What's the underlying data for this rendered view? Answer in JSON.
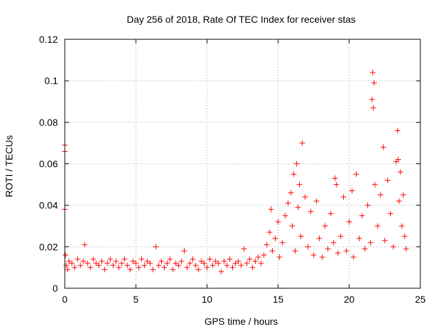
{
  "chart_data": {
    "type": "scatter",
    "title": "Day 256 of 2018, Rate Of TEC Index for receiver stas",
    "xlabel": "GPS time / hours",
    "ylabel": "ROTI / TECUs",
    "xlim": [
      0,
      25
    ],
    "ylim": [
      0,
      0.12
    ],
    "x_ticks": [
      0,
      5,
      10,
      15,
      20,
      25
    ],
    "x_tick_labels": [
      "0",
      "5",
      "10",
      "15",
      "20",
      "25"
    ],
    "y_ticks": [
      0,
      0.02,
      0.04,
      0.06,
      0.08,
      0.1,
      0.12
    ],
    "y_tick_labels": [
      "0",
      "0.02",
      "0.04",
      "0.06",
      "0.08",
      "0.1",
      "0.12"
    ],
    "grid": true,
    "marker": "plus",
    "marker_color": "#ff0000",
    "series": [
      {
        "name": "ROTI",
        "x": [
          0.0,
          0.0,
          0.0,
          0.05,
          0.1,
          0.2,
          0.3,
          0.5,
          0.7,
          0.9,
          1.1,
          1.3,
          1.4,
          1.6,
          1.8,
          2.0,
          2.2,
          2.4,
          2.6,
          2.8,
          3.0,
          3.2,
          3.4,
          3.6,
          3.8,
          4.0,
          4.2,
          4.4,
          4.6,
          4.8,
          5.0,
          5.2,
          5.4,
          5.6,
          5.8,
          6.0,
          6.2,
          6.4,
          6.6,
          6.8,
          7.0,
          7.2,
          7.4,
          7.6,
          7.8,
          8.0,
          8.2,
          8.4,
          8.6,
          8.8,
          9.0,
          9.2,
          9.4,
          9.6,
          9.8,
          10.0,
          10.2,
          10.4,
          10.6,
          10.8,
          11.0,
          11.2,
          11.4,
          11.6,
          11.8,
          12.0,
          12.2,
          12.4,
          12.6,
          12.8,
          13.0,
          13.2,
          13.4,
          13.6,
          13.8,
          14.0,
          14.2,
          14.4,
          14.5,
          14.6,
          14.8,
          15.0,
          15.1,
          15.3,
          15.5,
          15.7,
          15.9,
          16.0,
          16.1,
          16.2,
          16.3,
          16.4,
          16.5,
          16.6,
          16.7,
          16.9,
          17.1,
          17.3,
          17.5,
          17.7,
          17.9,
          18.1,
          18.3,
          18.5,
          18.7,
          18.9,
          19.0,
          19.1,
          19.2,
          19.4,
          19.6,
          19.8,
          20.0,
          20.2,
          20.3,
          20.5,
          20.7,
          20.9,
          21.1,
          21.3,
          21.5,
          21.6,
          21.65,
          21.7,
          21.75,
          21.8,
          22.0,
          22.2,
          22.4,
          22.5,
          22.7,
          22.9,
          23.1,
          23.3,
          23.4,
          23.45,
          23.5,
          23.6,
          23.7,
          23.8,
          23.9,
          24.0
        ],
        "y": [
          0.069,
          0.066,
          0.038,
          0.016,
          0.011,
          0.009,
          0.013,
          0.012,
          0.01,
          0.014,
          0.011,
          0.013,
          0.021,
          0.012,
          0.01,
          0.014,
          0.012,
          0.011,
          0.013,
          0.009,
          0.012,
          0.014,
          0.011,
          0.013,
          0.01,
          0.012,
          0.014,
          0.011,
          0.009,
          0.013,
          0.012,
          0.01,
          0.014,
          0.011,
          0.013,
          0.012,
          0.009,
          0.02,
          0.011,
          0.013,
          0.01,
          0.012,
          0.014,
          0.009,
          0.012,
          0.011,
          0.013,
          0.018,
          0.01,
          0.012,
          0.014,
          0.011,
          0.009,
          0.013,
          0.012,
          0.01,
          0.014,
          0.011,
          0.013,
          0.012,
          0.008,
          0.013,
          0.011,
          0.014,
          0.01,
          0.012,
          0.013,
          0.011,
          0.019,
          0.012,
          0.014,
          0.01,
          0.013,
          0.015,
          0.012,
          0.016,
          0.021,
          0.027,
          0.038,
          0.018,
          0.024,
          0.032,
          0.015,
          0.022,
          0.035,
          0.041,
          0.046,
          0.03,
          0.055,
          0.018,
          0.06,
          0.039,
          0.05,
          0.025,
          0.07,
          0.044,
          0.02,
          0.037,
          0.016,
          0.042,
          0.024,
          0.015,
          0.03,
          0.019,
          0.036,
          0.022,
          0.053,
          0.05,
          0.017,
          0.025,
          0.044,
          0.018,
          0.032,
          0.047,
          0.015,
          0.055,
          0.024,
          0.035,
          0.019,
          0.04,
          0.022,
          0.091,
          0.104,
          0.087,
          0.099,
          0.05,
          0.03,
          0.045,
          0.068,
          0.023,
          0.052,
          0.036,
          0.02,
          0.061,
          0.076,
          0.062,
          0.042,
          0.056,
          0.03,
          0.045,
          0.025,
          0.019
        ]
      }
    ]
  }
}
